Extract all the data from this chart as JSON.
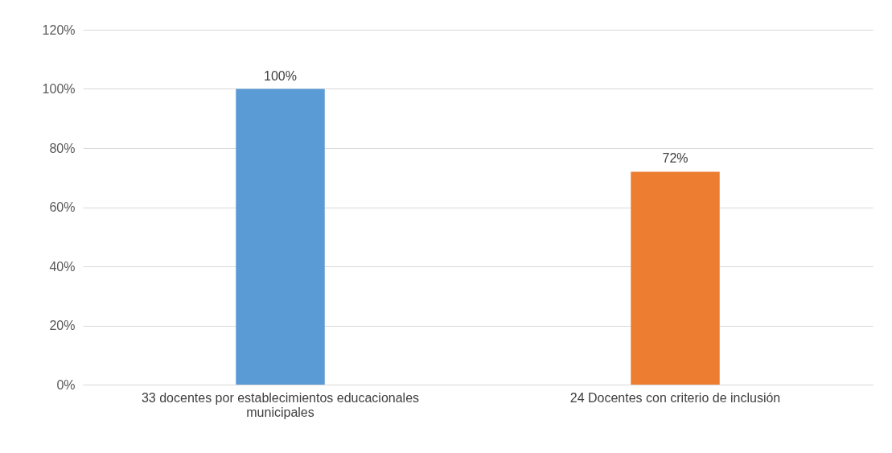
{
  "chart_data": {
    "type": "bar",
    "categories": [
      "33  docentes por establecimientos educacionales municipales",
      "24 Docentes con criterio de inclusión"
    ],
    "values": [
      100,
      72
    ],
    "colors": [
      "#5b9bd5",
      "#ed7d31"
    ],
    "value_labels": [
      "100%",
      "72%"
    ],
    "ylim": [
      0,
      120
    ],
    "yticks": [
      {
        "value": 0,
        "label": "0%"
      },
      {
        "value": 20,
        "label": "20%"
      },
      {
        "value": 40,
        "label": "40%"
      },
      {
        "value": 60,
        "label": "60%"
      },
      {
        "value": 80,
        "label": "80%"
      },
      {
        "value": 100,
        "label": "100%"
      },
      {
        "value": 120,
        "label": "120%"
      }
    ],
    "grid": "y"
  }
}
